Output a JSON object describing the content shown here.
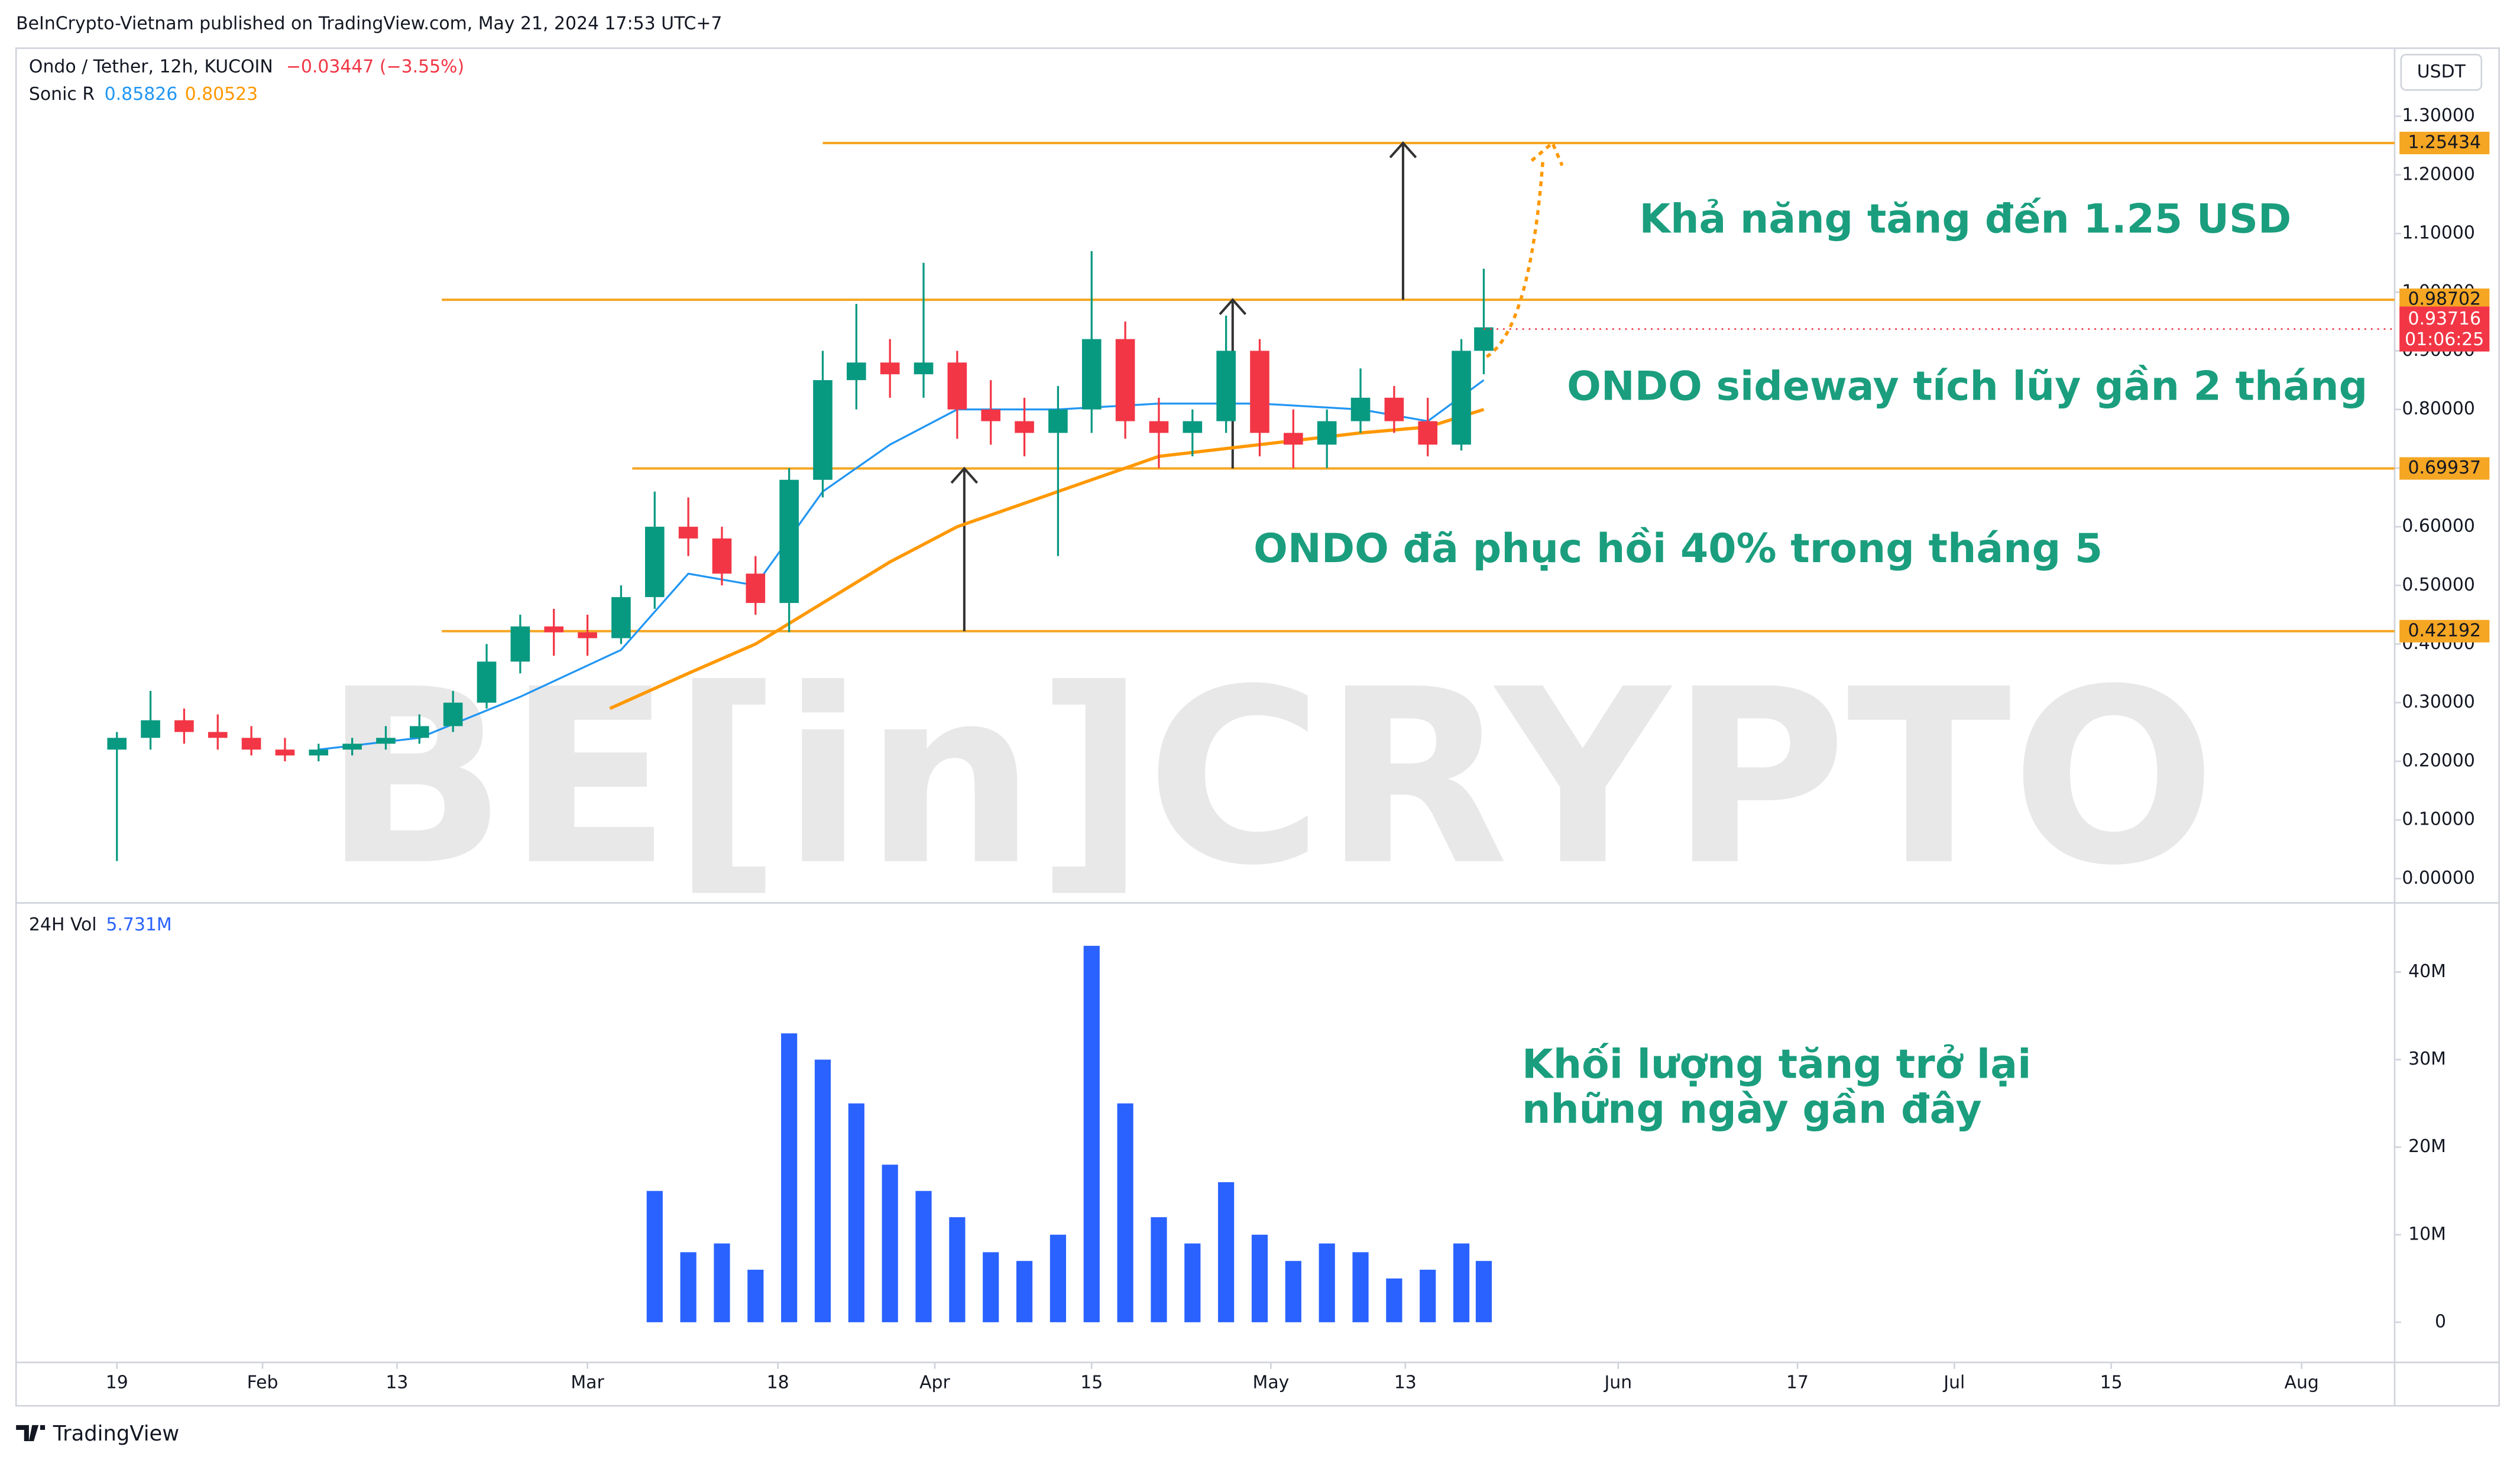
{
  "header": "BeInCrypto-Vietnam published on TradingView.com, May 21, 2024 17:53 UTC+7",
  "footer": "TradingView",
  "chart_data": {
    "type": "candlestick",
    "symbol": "Ondo / Tether, 12h, KUCOIN",
    "change": "−0.03447 (−3.55%)",
    "indicator": "Sonic R",
    "currency": "USDT",
    "watermark": "BE[in]CRYPTO",
    "xlim": [
      10,
      222.3
    ],
    "xticks": [
      19,
      {
        "value": 32,
        "label": "Feb"
      },
      {
        "value": 44,
        "label": "13"
      },
      {
        "value": 61,
        "label": "Mar"
      },
      {
        "value": 78,
        "label": "18"
      },
      {
        "value": 92,
        "label": "Apr"
      },
      {
        "value": 106,
        "label": "15"
      },
      {
        "value": 122,
        "label": "May"
      },
      {
        "value": 134,
        "label": "13"
      },
      {
        "value": 153,
        "label": "Jun"
      },
      {
        "value": 169,
        "label": "17"
      },
      {
        "value": 183,
        "label": "Jul"
      },
      {
        "value": 197,
        "label": "15"
      },
      {
        "value": 214,
        "label": "Aug"
      }
    ],
    "ylim": [
      -0.036,
      1.416
    ],
    "yticks": [
      {
        "value": 0,
        "label": "0.00000"
      },
      {
        "value": 0.1,
        "label": "0.10000"
      },
      {
        "value": 0.2,
        "label": "0.20000"
      },
      {
        "value": 0.3,
        "label": "0.30000"
      },
      {
        "value": 0.4,
        "label": "0.40000"
      },
      {
        "value": 0.5,
        "label": "0.50000"
      },
      {
        "value": 0.6,
        "label": "0.60000"
      },
      {
        "value": 0.7,
        "label": "0.70000"
      },
      {
        "value": 0.8,
        "label": "0.80000"
      },
      {
        "value": 0.9,
        "label": "0.90000"
      },
      {
        "value": 1.0,
        "label": "1.00000"
      },
      {
        "value": 1.1,
        "label": "1.10000"
      },
      {
        "value": 1.2,
        "label": "1.20000"
      },
      {
        "value": 1.3,
        "label": "1.30000"
      }
    ],
    "up_color": "#089981",
    "down_color": "#f23645",
    "x": [
      19,
      22,
      25,
      28,
      31,
      34,
      37,
      40,
      43,
      46,
      49,
      52,
      55,
      58,
      61,
      64,
      67,
      70,
      73,
      76,
      79,
      82,
      85,
      88,
      91,
      94,
      97,
      100,
      103,
      106,
      109,
      112,
      115,
      118,
      121,
      124,
      127,
      130,
      133,
      136,
      139,
      141
    ],
    "open": [
      0.22,
      0.24,
      0.27,
      0.25,
      0.24,
      0.22,
      0.21,
      0.22,
      0.23,
      0.24,
      0.26,
      0.3,
      0.37,
      0.43,
      0.42,
      0.41,
      0.48,
      0.6,
      0.58,
      0.52,
      0.47,
      0.68,
      0.85,
      0.88,
      0.86,
      0.88,
      0.8,
      0.78,
      0.76,
      0.8,
      0.92,
      0.78,
      0.76,
      0.78,
      0.9,
      0.76,
      0.74,
      0.78,
      0.82,
      0.78,
      0.74,
      0.9
    ],
    "high": [
      0.25,
      0.32,
      0.29,
      0.28,
      0.26,
      0.24,
      0.23,
      0.24,
      0.26,
      0.28,
      0.32,
      0.4,
      0.45,
      0.46,
      0.45,
      0.5,
      0.66,
      0.65,
      0.6,
      0.55,
      0.7,
      0.9,
      0.98,
      0.92,
      1.05,
      0.9,
      0.85,
      0.82,
      0.84,
      1.07,
      0.95,
      0.82,
      0.8,
      0.96,
      0.92,
      0.8,
      0.8,
      0.87,
      0.84,
      0.82,
      0.92,
      1.04
    ],
    "low": [
      0.03,
      0.22,
      0.23,
      0.22,
      0.21,
      0.2,
      0.2,
      0.21,
      0.22,
      0.23,
      0.25,
      0.29,
      0.35,
      0.38,
      0.38,
      0.4,
      0.46,
      0.55,
      0.5,
      0.45,
      0.42,
      0.65,
      0.8,
      0.82,
      0.82,
      0.75,
      0.74,
      0.72,
      0.55,
      0.76,
      0.75,
      0.7,
      0.72,
      0.76,
      0.72,
      0.7,
      0.7,
      0.76,
      0.76,
      0.72,
      0.73,
      0.86
    ],
    "close": [
      0.24,
      0.27,
      0.25,
      0.24,
      0.22,
      0.21,
      0.22,
      0.23,
      0.24,
      0.26,
      0.3,
      0.37,
      0.43,
      0.42,
      0.41,
      0.48,
      0.6,
      0.58,
      0.52,
      0.47,
      0.68,
      0.85,
      0.88,
      0.86,
      0.88,
      0.8,
      0.78,
      0.76,
      0.8,
      0.92,
      0.78,
      0.76,
      0.78,
      0.9,
      0.76,
      0.74,
      0.78,
      0.82,
      0.78,
      0.74,
      0.9,
      0.94
    ],
    "series": [
      {
        "color": "#2196f3",
        "legend_value": 0.85826,
        "x": [
          37,
          46,
          55,
          64,
          70,
          76,
          82,
          88,
          94,
          103,
          112,
          121,
          130,
          136,
          141
        ],
        "values": [
          0.22,
          0.24,
          0.31,
          0.39,
          0.52,
          0.5,
          0.66,
          0.74,
          0.8,
          0.8,
          0.81,
          0.81,
          0.8,
          0.78,
          0.85
        ]
      },
      {
        "color": "#ff9800",
        "legend_value": 0.80523,
        "x": [
          63,
          70,
          76,
          82,
          88,
          94,
          100,
          106,
          112,
          121,
          130,
          136,
          141
        ],
        "values": [
          0.29,
          0.35,
          0.4,
          0.47,
          0.54,
          0.6,
          0.64,
          0.68,
          0.72,
          0.74,
          0.76,
          0.77,
          0.8
        ]
      }
    ],
    "levels": [
      {
        "value": 1.25434,
        "x_start": 82
      },
      {
        "value": 0.98702,
        "x_start": 48
      },
      {
        "value": 0.69937,
        "x_start": 65
      },
      {
        "value": 0.42192,
        "x_start": 48
      }
    ],
    "level_color": "#f5a623",
    "last_price": 0.93716,
    "countdown": "01:06:25",
    "annotations": [
      "Khả năng tăng đến 1.25 USD",
      "ONDO sideway tích lũy gần 2 tháng",
      "ONDO đã phục hồi 40% trong tháng 5",
      "Khối lượng tăng trở lại",
      "những ngày gần đây"
    ],
    "volume": {
      "name": "24H Vol",
      "legend_value": "5.731M",
      "color": "#2962ff",
      "ylim": [
        -4.04,
        47.35
      ],
      "yticks": [
        0,
        {
          "value": 10,
          "label": "10M"
        },
        {
          "value": 20,
          "label": "20M"
        },
        {
          "value": 30,
          "label": "30M"
        },
        {
          "value": 40,
          "label": "40M"
        }
      ],
      "values": [
        null,
        null,
        null,
        null,
        null,
        null,
        null,
        null,
        null,
        null,
        null,
        null,
        null,
        null,
        null,
        null,
        15,
        8,
        9,
        6,
        33,
        30,
        25,
        18,
        15,
        12,
        8,
        7,
        10,
        43,
        25,
        12,
        9,
        16,
        10,
        7,
        9,
        8,
        5,
        6,
        9,
        7
      ]
    }
  }
}
